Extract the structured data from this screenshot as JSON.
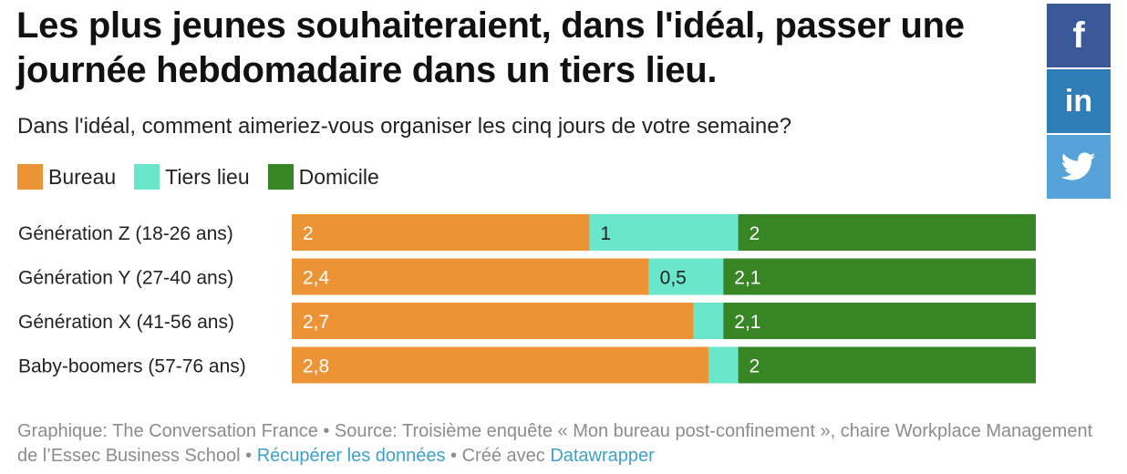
{
  "title": "Les plus jeunes souhaiteraient, dans l'idéal, passer une journée hebdomadaire dans un tiers lieu.",
  "subtitle": "Dans l'idéal, comment aimeriez-vous organiser les cinq jours de votre semaine?",
  "social": {
    "facebook": "facebook-icon",
    "linkedin": "linkedin-icon",
    "twitter": "twitter-icon"
  },
  "chart_data": {
    "type": "bar",
    "orientation": "horizontal",
    "stacked": true,
    "categories": [
      "Génération Z (18-26 ans)",
      "Génération Y (27-40 ans)",
      "Génération X (41-56 ans)",
      "Baby-boomers (57-76 ans)"
    ],
    "series": [
      {
        "name": "Bureau",
        "color": "#ec9336",
        "values": [
          2,
          2.4,
          2.7,
          2.8
        ],
        "labels": [
          "2",
          "2,4",
          "2,7",
          "2,8"
        ]
      },
      {
        "name": "Tiers lieu",
        "color": "#6ae6cb",
        "values": [
          1,
          0.5,
          0.2,
          0.2
        ],
        "labels": [
          "1",
          "0,5",
          "",
          ""
        ]
      },
      {
        "name": "Domicile",
        "color": "#378524",
        "values": [
          2,
          2.1,
          2.1,
          2
        ],
        "labels": [
          "2",
          "2,1",
          "2,1",
          "2"
        ]
      }
    ],
    "xlim": [
      0,
      5
    ],
    "legend_position": "top-left"
  },
  "footer": {
    "text": "Graphique: The Conversation France • Source: Troisième enquête « Mon bureau post-confinement », chaire Workplace Management de l’Essec Business School • ",
    "download_link": "Récupérer les données",
    "separator": " • Créé avec ",
    "datawrapper_link": "Datawrapper"
  }
}
